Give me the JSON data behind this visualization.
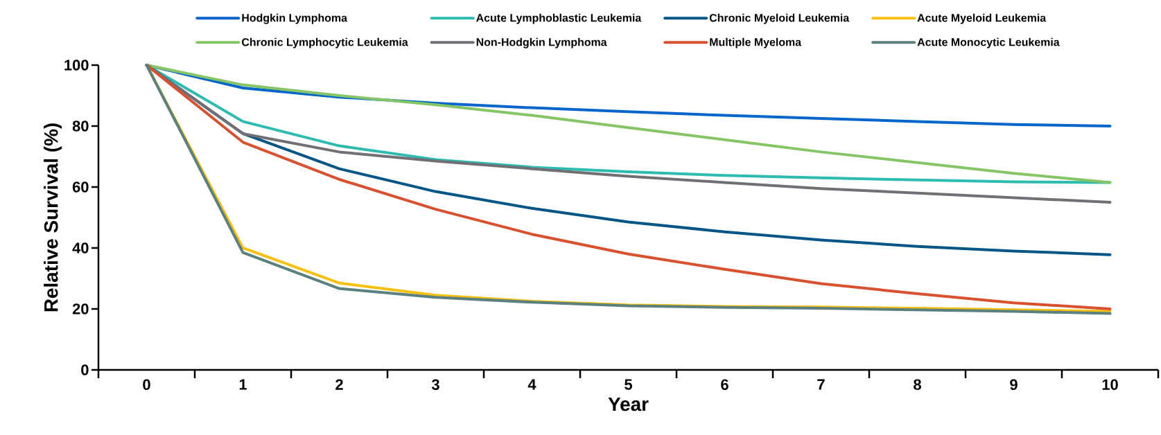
{
  "chart_data": {
    "type": "line",
    "xlabel": "Year",
    "ylabel": "Relative Survival (%)",
    "categories": [
      "0",
      "1",
      "2",
      "3",
      "4",
      "5",
      "6",
      "7",
      "8",
      "9",
      "10"
    ],
    "ylim": [
      0,
      100
    ],
    "yticks": [
      0,
      20,
      40,
      60,
      80,
      100
    ],
    "legend": "top",
    "grid": false,
    "marker": "none",
    "line_style": "solid",
    "series": [
      {
        "name": "Hodgkin Lymphoma",
        "color": "#0066cc",
        "values": [
          100,
          92.5,
          89.5,
          87.5,
          86,
          84.7,
          83.5,
          82.5,
          81.5,
          80.5,
          80
        ]
      },
      {
        "name": "Acute Lymphoblastic Leukemia",
        "color": "#2dbbb0",
        "values": [
          100,
          81.5,
          73.5,
          69,
          66.5,
          65,
          63.8,
          63,
          62.3,
          61.7,
          61.5
        ]
      },
      {
        "name": "Chronic Myeloid Leukemia",
        "color": "#005587",
        "values": [
          100,
          77.5,
          66,
          58.5,
          53,
          48.5,
          45.3,
          42.6,
          40.5,
          39,
          37.8
        ]
      },
      {
        "name": "Acute Myeloid Leukemia",
        "color": "#f5c010",
        "values": [
          100,
          40,
          28.5,
          24.5,
          22.5,
          21.3,
          20.8,
          20.6,
          20.2,
          19.7,
          19.2
        ]
      },
      {
        "name": "Chronic Lymphocytic Leukemia",
        "color": "#85c565",
        "values": [
          100,
          93.5,
          90,
          87,
          83.5,
          79.5,
          75.5,
          71.5,
          68,
          64.5,
          61.5
        ]
      },
      {
        "name": "Non-Hodgkin Lymphoma",
        "color": "#706f75",
        "values": [
          100,
          77.5,
          71.5,
          68.5,
          66,
          63.5,
          61.5,
          59.5,
          58,
          56.5,
          55
        ]
      },
      {
        "name": "Multiple Myeloma",
        "color": "#d9502e",
        "values": [
          100,
          74.7,
          62.5,
          52.7,
          44.5,
          38,
          33,
          28.3,
          25,
          22,
          20
        ]
      },
      {
        "name": "Acute Monocytic Leukemia",
        "color": "#5a8080",
        "values": [
          100,
          38.5,
          26.7,
          23.8,
          22.2,
          21,
          20.5,
          20.2,
          19.7,
          19.2,
          18.5
        ]
      }
    ]
  }
}
